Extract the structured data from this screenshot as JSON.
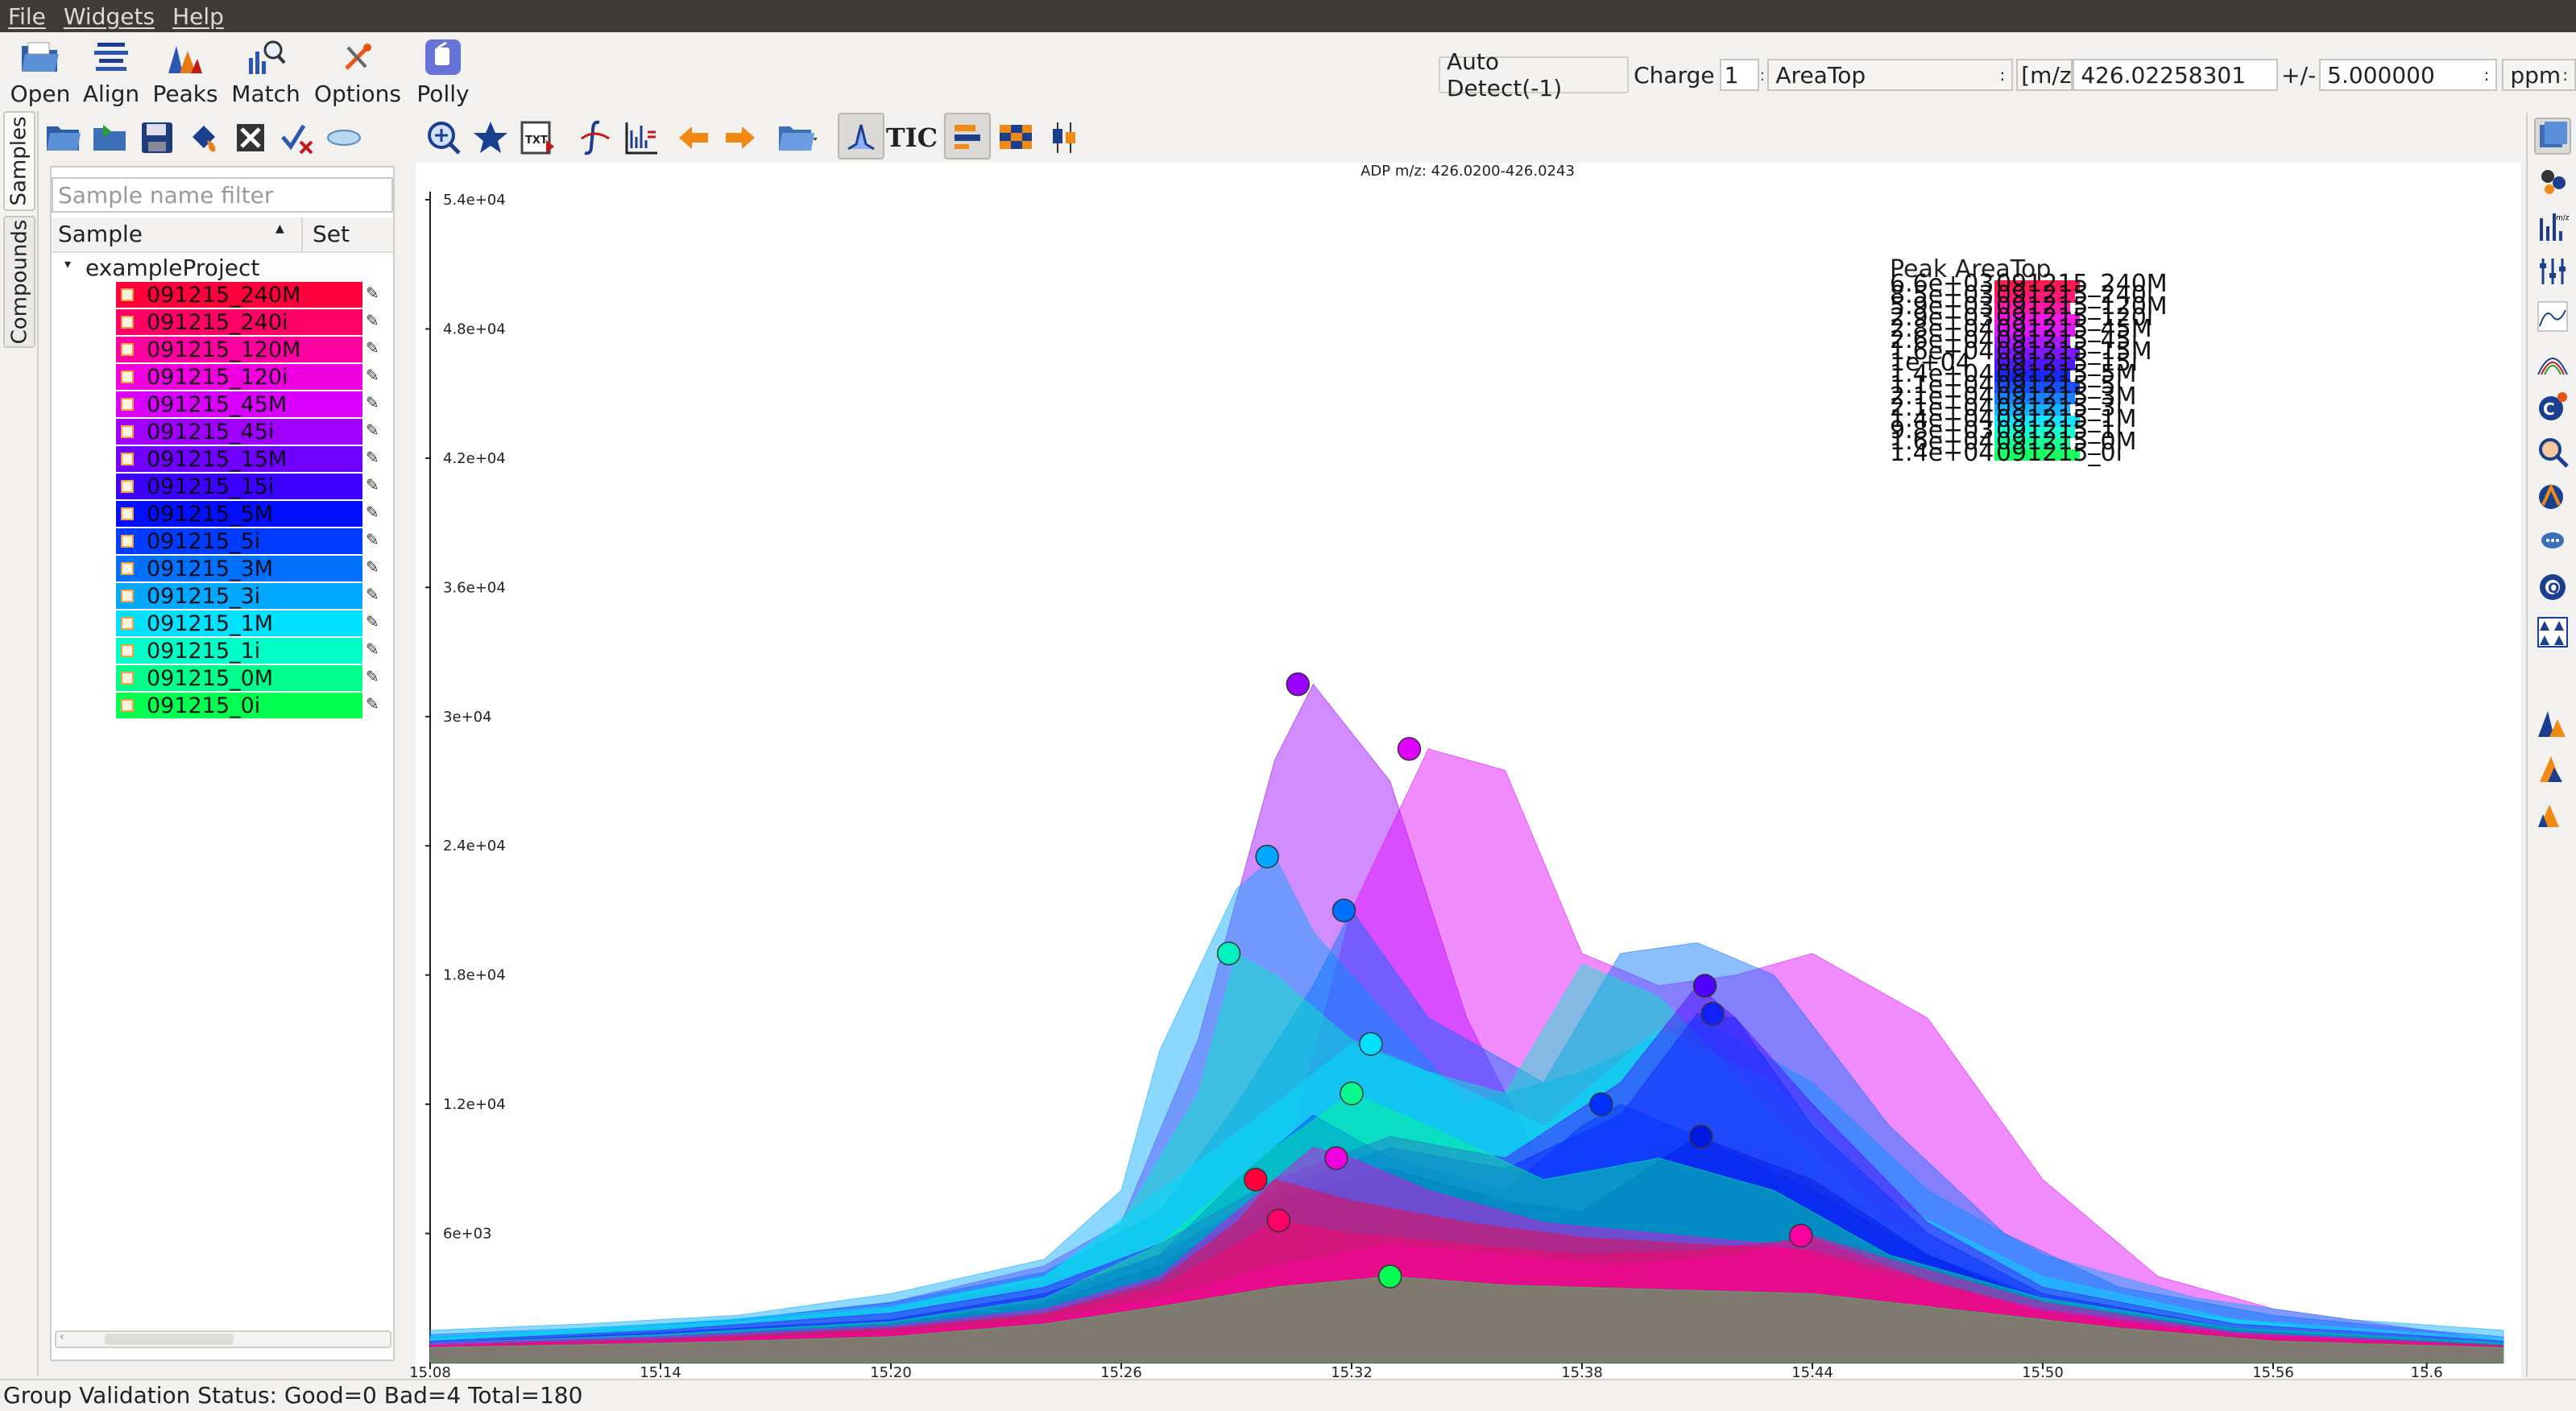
{
  "menu": [
    "File",
    "Widgets",
    "Help"
  ],
  "toolbar": {
    "open": "Open",
    "align": "Align",
    "peaks": "Peaks",
    "match": "Match",
    "options": "Options",
    "polly": "Polly"
  },
  "search": {
    "auto_detect": "Auto Detect(-1)",
    "charge_label": "Charge",
    "charge_value": "1",
    "quant_type": "AreaTop",
    "mz_label": "[m/z]",
    "mz_value": "426.02258301",
    "tol_label": "+/-",
    "tol_value": "5.000000",
    "unit": "ppm"
  },
  "toolbar2": {
    "tic": "TIC"
  },
  "tabs": {
    "samples": "Samples",
    "compounds": "Compounds"
  },
  "panel": {
    "filter_placeholder": "Sample name filter",
    "col_sample": "Sample",
    "col_set": "Set",
    "project": "exampleProject"
  },
  "samples": [
    {
      "name": "091215_240M",
      "color": "#ff003c"
    },
    {
      "name": "091215_240i",
      "color": "#ff0066"
    },
    {
      "name": "091215_120M",
      "color": "#ff00a0"
    },
    {
      "name": "091215_120i",
      "color": "#f000e0"
    },
    {
      "name": "091215_45M",
      "color": "#d800ff"
    },
    {
      "name": "091215_45i",
      "color": "#a000ff"
    },
    {
      "name": "091215_15M",
      "color": "#7000ff"
    },
    {
      "name": "091215_15i",
      "color": "#3c00ff"
    },
    {
      "name": "091215_5M",
      "color": "#0010ff"
    },
    {
      "name": "091215_5i",
      "color": "#003cff"
    },
    {
      "name": "091215_3M",
      "color": "#0070ff"
    },
    {
      "name": "091215_3i",
      "color": "#00a8ff"
    },
    {
      "name": "091215_1M",
      "color": "#00e0ff"
    },
    {
      "name": "091215_1i",
      "color": "#00ffc8"
    },
    {
      "name": "091215_0M",
      "color": "#00ff8c"
    },
    {
      "name": "091215_0i",
      "color": "#00ff50"
    }
  ],
  "chart_data": {
    "type": "area",
    "title": "ADP m/z: 426.0200-426.0243",
    "ylim": [
      0,
      54000
    ],
    "yticks": [
      "6e+03",
      "1.2e+04",
      "1.8e+04",
      "2.4e+04",
      "3e+04",
      "3.6e+04",
      "4.2e+04",
      "4.8e+04",
      "5.4e+04"
    ],
    "xlim": [
      15.08,
      15.62
    ],
    "xticks": [
      "15.08",
      "15.14",
      "15.20",
      "15.26",
      "15.32",
      "15.38",
      "15.44",
      "15.50",
      "15.56",
      "15.6"
    ],
    "legend_title": "Peak AreaTop",
    "legend_values": [
      "6.6e+03",
      "8.5e+03",
      "5.9e+03",
      "2.9e+03",
      "2.8e+04",
      "2.6e+04",
      "1.6e+04",
      "1e+04",
      "1.4e+04",
      "1.1e+04",
      "2.1e+04",
      "2.1e+04",
      "1.4e+04",
      "9.8e+03",
      "1.6e+04",
      "1.4e+04"
    ],
    "series": [
      {
        "name": "091215_45i",
        "color": "#9a00ff",
        "x": [
          15.08,
          15.12,
          15.16,
          15.2,
          15.24,
          15.26,
          15.28,
          15.3,
          15.31,
          15.33,
          15.35,
          15.37,
          15.4,
          15.43,
          15.47,
          15.5,
          15.54,
          15.58,
          15.62
        ],
        "y": [
          1200,
          1500,
          2000,
          2800,
          4500,
          6500,
          15000,
          28000,
          31500,
          27000,
          16000,
          9000,
          10500,
          10000,
          5500,
          3000,
          1800,
          1200,
          900
        ],
        "peak": [
          15.306,
          31500
        ]
      },
      {
        "name": "091215_45M",
        "color": "#e000ff",
        "x": [
          15.08,
          15.12,
          15.16,
          15.2,
          15.24,
          15.27,
          15.3,
          15.32,
          15.34,
          15.36,
          15.38,
          15.4,
          15.42,
          15.44,
          15.47,
          15.5,
          15.53,
          15.56,
          15.6,
          15.62
        ],
        "y": [
          1000,
          1400,
          1800,
          2500,
          3800,
          5000,
          7500,
          21000,
          28500,
          27500,
          19000,
          17500,
          18000,
          19000,
          16000,
          8500,
          4000,
          2500,
          1500,
          1000
        ],
        "peak": [
          15.335,
          28500
        ]
      },
      {
        "name": "091215_3i",
        "color": "#00a8ff",
        "x": [
          15.08,
          15.12,
          15.16,
          15.2,
          15.24,
          15.26,
          15.27,
          15.29,
          15.3,
          15.31,
          15.33,
          15.35,
          15.38,
          15.41,
          15.44,
          15.47,
          15.5,
          15.54,
          15.58,
          15.62
        ],
        "y": [
          1500,
          1800,
          2200,
          3200,
          4800,
          8000,
          14500,
          22000,
          23500,
          20000,
          16000,
          12000,
          13500,
          16000,
          13000,
          8000,
          5000,
          3000,
          2000,
          1500
        ],
        "peak": [
          15.298,
          23500
        ]
      },
      {
        "name": "091215_3M",
        "color": "#0070ff",
        "x": [
          15.08,
          15.12,
          15.16,
          15.2,
          15.24,
          15.27,
          15.29,
          15.31,
          15.32,
          15.34,
          15.37,
          15.39,
          15.41,
          15.43,
          15.46,
          15.49,
          15.52,
          15.56,
          15.6,
          15.62
        ],
        "y": [
          1300,
          1600,
          2000,
          2800,
          4200,
          7000,
          12000,
          17500,
          21000,
          16000,
          13000,
          19000,
          19500,
          18000,
          11000,
          6000,
          3500,
          2200,
          1500,
          1200
        ],
        "peak": [
          15.318,
          21000
        ]
      },
      {
        "name": "091215_1i",
        "color": "#00f0c0",
        "x": [
          15.08,
          15.12,
          15.16,
          15.2,
          15.24,
          15.26,
          15.28,
          15.29,
          15.3,
          15.32,
          15.34,
          15.36,
          15.38,
          15.4,
          15.43,
          15.46,
          15.5,
          15.54,
          15.58,
          15.62
        ],
        "y": [
          1100,
          1500,
          1900,
          2500,
          4000,
          6500,
          12500,
          19000,
          18000,
          15000,
          13500,
          12500,
          18500,
          17000,
          11500,
          6500,
          3500,
          2200,
          1400,
          1000
        ],
        "peak": [
          15.288,
          19000
        ]
      },
      {
        "name": "091215_1M",
        "color": "#00e0ff",
        "x": [
          15.08,
          15.14,
          15.2,
          15.24,
          15.27,
          15.3,
          15.32,
          15.34,
          15.37,
          15.4,
          15.43,
          15.46,
          15.5,
          15.55,
          15.62
        ],
        "y": [
          1200,
          1800,
          2600,
          4000,
          8000,
          12000,
          14800,
          13500,
          11000,
          15500,
          13000,
          7500,
          4000,
          2000,
          1100
        ],
        "peak": [
          15.325,
          14800
        ]
      },
      {
        "name": "091215_15M",
        "color": "#5000ff",
        "x": [
          15.08,
          15.14,
          15.2,
          15.24,
          15.27,
          15.3,
          15.33,
          15.36,
          15.39,
          15.41,
          15.42,
          15.44,
          15.47,
          15.5,
          15.55,
          15.62
        ],
        "y": [
          1000,
          1500,
          2300,
          3500,
          5500,
          8500,
          10500,
          9500,
          13000,
          17500,
          16000,
          12000,
          6500,
          3500,
          1800,
          1000
        ],
        "peak": [
          15.412,
          17500
        ]
      },
      {
        "name": "091215_15i",
        "color": "#1020ff",
        "x": [
          15.08,
          15.14,
          15.2,
          15.24,
          15.27,
          15.3,
          15.33,
          15.36,
          15.39,
          15.41,
          15.42,
          15.44,
          15.47,
          15.5,
          15.55,
          15.62
        ],
        "y": [
          900,
          1400,
          2000,
          3200,
          5000,
          8000,
          10000,
          9000,
          11500,
          16200,
          16000,
          11000,
          6000,
          3200,
          1600,
          900
        ],
        "peak": [
          15.414,
          16200
        ]
      },
      {
        "name": "091215_5M",
        "color": "#0030ff",
        "x": [
          15.08,
          15.14,
          15.2,
          15.24,
          15.27,
          15.29,
          15.31,
          15.33,
          15.36,
          15.38,
          15.39,
          15.41,
          15.44,
          15.47,
          15.5,
          15.55,
          15.62
        ],
        "y": [
          900,
          1300,
          1900,
          3000,
          5000,
          8500,
          11500,
          9500,
          8000,
          11000,
          12000,
          10500,
          8000,
          5000,
          3000,
          1600,
          900
        ],
        "peak": [
          15.385,
          12000
        ]
      },
      {
        "name": "091215_5i",
        "color": "#0018e0",
        "x": [
          15.08,
          15.14,
          15.2,
          15.24,
          15.27,
          15.3,
          15.33,
          15.36,
          15.38,
          15.41,
          15.44,
          15.47,
          15.5,
          15.55,
          15.62
        ],
        "y": [
          800,
          1200,
          1800,
          2800,
          4500,
          7500,
          9000,
          7500,
          7000,
          10500,
          8500,
          5000,
          2800,
          1500,
          800
        ],
        "peak": [
          15.411,
          10500
        ]
      },
      {
        "name": "091215_0M",
        "color": "#00ff8c",
        "x": [
          15.08,
          15.14,
          15.2,
          15.24,
          15.27,
          15.3,
          15.32,
          15.34,
          15.37,
          15.4,
          15.43,
          15.46,
          15.5,
          15.55,
          15.62
        ],
        "y": [
          900,
          1300,
          1900,
          3000,
          5500,
          10000,
          12500,
          11000,
          8500,
          9500,
          8000,
          5000,
          3000,
          1600,
          900
        ],
        "peak": [
          15.32,
          12500
        ]
      },
      {
        "name": "091215_120i",
        "color": "#f000e0",
        "x": [
          15.08,
          15.14,
          15.2,
          15.24,
          15.27,
          15.29,
          15.31,
          15.32,
          15.34,
          15.37,
          15.4,
          15.43,
          15.46,
          15.5,
          15.55,
          15.62
        ],
        "y": [
          900,
          1200,
          1700,
          2500,
          4000,
          7000,
          10000,
          9500,
          8000,
          6500,
          6000,
          5500,
          4000,
          2500,
          1400,
          800
        ],
        "peak": [
          15.316,
          9500
        ]
      },
      {
        "name": "091215_240M",
        "color": "#ff003c",
        "x": [
          15.08,
          15.14,
          15.2,
          15.24,
          15.27,
          15.29,
          15.3,
          15.32,
          15.35,
          15.38,
          15.41,
          15.44,
          15.47,
          15.5,
          15.55,
          15.62
        ],
        "y": [
          800,
          1100,
          1600,
          2300,
          3800,
          6500,
          8500,
          7500,
          6500,
          5800,
          5500,
          5200,
          3800,
          2400,
          1300,
          800
        ],
        "peak": [
          15.295,
          8500
        ]
      },
      {
        "name": "091215_240i",
        "color": "#ff0066",
        "x": [
          15.08,
          15.14,
          15.2,
          15.24,
          15.27,
          15.29,
          15.3,
          15.32,
          15.35,
          15.38,
          15.41,
          15.44,
          15.47,
          15.5,
          15.55,
          15.62
        ],
        "y": [
          800,
          1000,
          1500,
          2200,
          3500,
          5500,
          6600,
          6000,
          5500,
          5000,
          5200,
          5800,
          3800,
          2300,
          1200,
          700
        ],
        "peak": [
          15.301,
          6600
        ]
      },
      {
        "name": "091215_120M",
        "color": "#ff00a0",
        "x": [
          15.08,
          15.14,
          15.2,
          15.24,
          15.27,
          15.3,
          15.33,
          15.36,
          15.39,
          15.42,
          15.44,
          15.46,
          15.5,
          15.55,
          15.62
        ],
        "y": [
          800,
          1000,
          1400,
          2000,
          3000,
          4500,
          5500,
          5000,
          4500,
          5000,
          5900,
          4800,
          2800,
          1400,
          700
        ],
        "peak": [
          15.437,
          5900
        ]
      },
      {
        "name": "091215_0i",
        "color": "#00ff50",
        "x": [
          15.08,
          15.14,
          15.2,
          15.24,
          15.27,
          15.3,
          15.33,
          15.36,
          15.4,
          15.44,
          15.48,
          15.52,
          15.56,
          15.62
        ],
        "y": [
          700,
          900,
          1200,
          1800,
          2600,
          3500,
          4000,
          3600,
          3400,
          3200,
          2400,
          1600,
          1000,
          700
        ],
        "peak": [
          15.33,
          4000
        ]
      }
    ]
  },
  "status": "Group Validation Status: Good=0 Bad=4 Total=180"
}
